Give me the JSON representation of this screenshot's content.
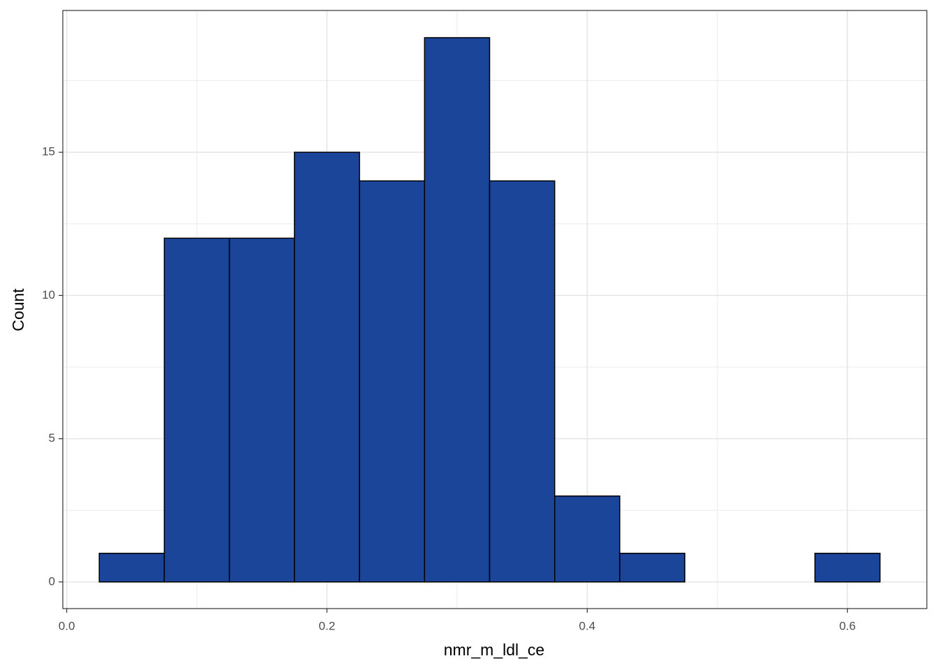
{
  "chart_data": {
    "type": "histogram",
    "x_label": "nmr_m_ldl_ce",
    "y_label": "Count",
    "bins": [
      0.025,
      0.075,
      0.125,
      0.175,
      0.225,
      0.275,
      0.325,
      0.375,
      0.425,
      0.475,
      0.525,
      0.575,
      0.625
    ],
    "values": [
      1,
      12,
      12,
      15,
      14,
      19,
      14,
      3,
      1,
      0,
      0,
      1
    ],
    "color": "#1a4599",
    "edge_color": "#000000",
    "xlim": [
      -0.003,
      0.661
    ],
    "ylim": [
      -0.93,
      19.95
    ],
    "xticks": [
      {
        "value": 0,
        "label": "0.0"
      },
      0.2,
      0.4,
      0.6
    ],
    "yticks": [
      0,
      5,
      10,
      15
    ],
    "x_minor_grid": [
      0.1,
      0.3,
      0.5
    ],
    "y_minor_grid": [
      2.5,
      7.5,
      12.5,
      17.5
    ],
    "grid": true
  }
}
